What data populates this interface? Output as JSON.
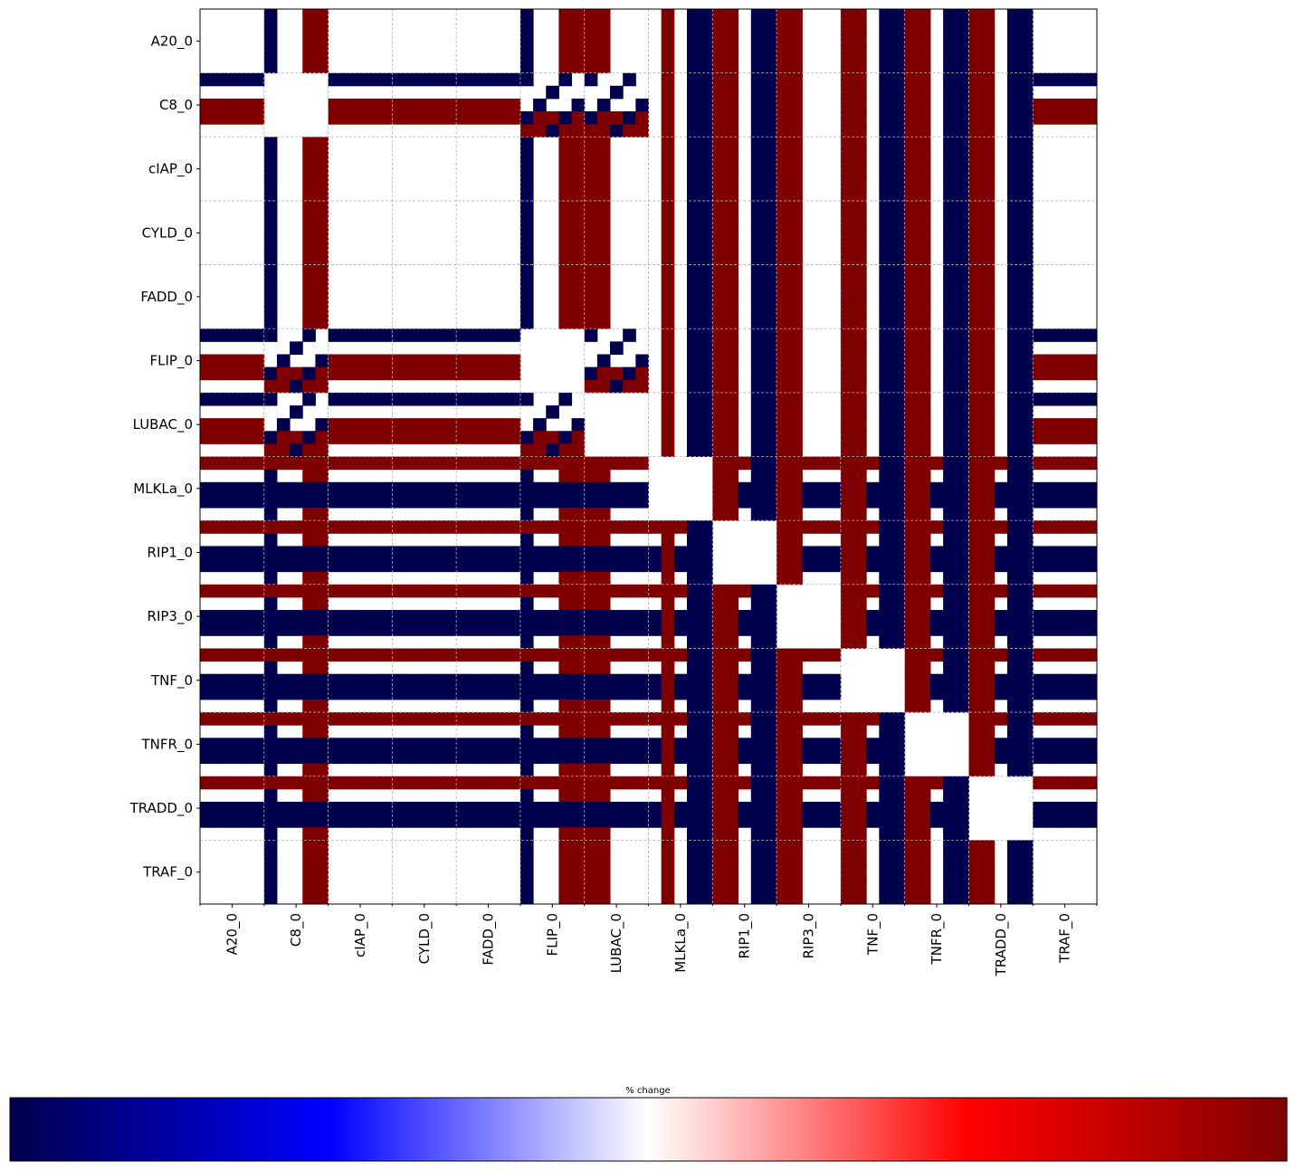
{
  "chart_data": {
    "type": "heatmap",
    "labels": [
      "A20_0",
      "C8_0",
      "cIAP_0",
      "CYLD_0",
      "FADD_0",
      "FLIP_0",
      "LUBAC_0",
      "MLKLa_0",
      "RIP1_0",
      "RIP3_0",
      "TNF_0",
      "TNFR_0",
      "TRADD_0",
      "TRAF_0"
    ],
    "sub_cells": 5,
    "colormap": "seismic",
    "grid": true,
    "colorbar": {
      "label": "% change",
      "orientation": "horizontal",
      "position": "bottom"
    },
    "rows": [
      "......B..R............................B..RR.RR..R..BB.R..BB.R..R..BB.R..BB.R..BB.R..BB.R.......",
      "BBBBB.....BBBBBBBBBBBBBBBBBBBBBB.BBB...BB..R.BBB.R..BB.R..BBB.R..BB.R..BB.R..BB.R..BBBBBBB",
      ".....................................................................................................",
      "RRRRR.....RRRRRRRRRRRRRRRRRRRRRR.RRR.R.RR..R.BBB.RR..BB.RR.....R..BB.RR..BB.RR..BB.RRRRRRR",
      "......B..R............................B..RR.RR..R..BB.R..BB.R..R..BB.R..BB.R..BB.R..BB.R.......",
      "BBBBBBBBBBBBBBBBBBBBBBBBBBBBBBBBBBBBBBBBBBBBBBBBBBBBBBBBBBBBBBBBBBBBBBBBBBBBBBBBBBBBBBB",
      "RRRRRRRRRRRRRRRRRRRRRRRRRRRRRRRRRRRRRRRRRRRRRRRRRRRRRRRRRRRRRRRRRRRRRRRRRRRRRRRRRRRRRRR"
    ]
  }
}
